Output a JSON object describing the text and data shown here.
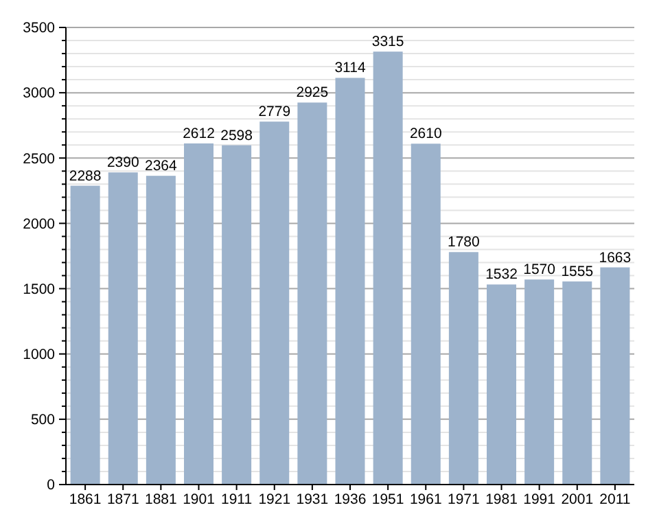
{
  "chart_data": {
    "type": "bar",
    "categories": [
      "1861",
      "1871",
      "1881",
      "1901",
      "1911",
      "1921",
      "1931",
      "1936",
      "1951",
      "1961",
      "1971",
      "1981",
      "1991",
      "2001",
      "2011"
    ],
    "values": [
      2288,
      2390,
      2364,
      2612,
      2598,
      2779,
      2925,
      3114,
      3315,
      2610,
      1780,
      1532,
      1570,
      1555,
      1663
    ],
    "color": "#9db3cc",
    "ylim": [
      0,
      3500
    ],
    "yticks": [
      0,
      {
        "value": 100,
        "label": null
      },
      {
        "value": 200,
        "label": null
      },
      {
        "value": 300,
        "label": null
      },
      {
        "value": 400,
        "label": null
      },
      500,
      {
        "value": 600,
        "label": null
      },
      {
        "value": 700,
        "label": null
      },
      {
        "value": 800,
        "label": null
      },
      {
        "value": 900,
        "label": null
      },
      1000,
      {
        "value": 1100,
        "label": null
      },
      {
        "value": 1200,
        "label": null
      },
      {
        "value": 1300,
        "label": null
      },
      {
        "value": 1400,
        "label": null
      },
      1500,
      {
        "value": 1600,
        "label": null
      },
      {
        "value": 1700,
        "label": null
      },
      {
        "value": 1800,
        "label": null
      },
      {
        "value": 1900,
        "label": null
      },
      2000,
      {
        "value": 2100,
        "label": null
      },
      {
        "value": 2200,
        "label": null
      },
      {
        "value": 2300,
        "label": null
      },
      {
        "value": 2400,
        "label": null
      },
      2500,
      {
        "value": 2600,
        "label": null
      },
      {
        "value": 2700,
        "label": null
      },
      {
        "value": 2800,
        "label": null
      },
      {
        "value": 2900,
        "label": null
      },
      3000,
      {
        "value": 3100,
        "label": null
      },
      {
        "value": 3200,
        "label": null
      },
      {
        "value": 3300,
        "label": null
      },
      {
        "value": 3400,
        "label": null
      },
      3500
    ],
    "grid": "y",
    "data_labels": true
  }
}
